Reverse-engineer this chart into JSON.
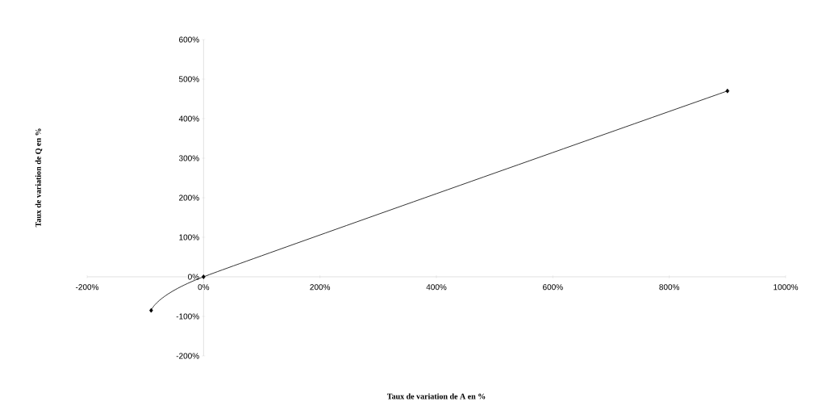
{
  "chart_data": {
    "type": "line",
    "xlabel": "Taux de variation de A en %",
    "ylabel": "Taux de variation de Q en %",
    "x": [
      -90,
      0,
      900
    ],
    "series": [
      {
        "color": "#000000",
        "values": [
          -85,
          0,
          470
        ]
      }
    ],
    "marker": "diamond",
    "line_style": "solid",
    "xlim": [
      -200,
      1000
    ],
    "ylim": [
      -200,
      600
    ],
    "xticks": [
      {
        "value": -200,
        "label": "-200%"
      },
      {
        "value": 0,
        "label": "0%"
      },
      {
        "value": 200,
        "label": "200%"
      },
      {
        "value": 400,
        "label": "400%"
      },
      {
        "value": 600,
        "label": "600%"
      },
      {
        "value": 800,
        "label": "800%"
      },
      {
        "value": 1000,
        "label": "1000%"
      }
    ],
    "yticks": [
      {
        "value": -200,
        "label": "-200%"
      },
      {
        "value": -100,
        "label": "-100%"
      },
      {
        "value": 0,
        "label": "0%"
      },
      {
        "value": 100,
        "label": "100%"
      },
      {
        "value": 200,
        "label": "200%"
      },
      {
        "value": 300,
        "label": "300%"
      },
      {
        "value": 400,
        "label": "400%"
      },
      {
        "value": 500,
        "label": "500%"
      },
      {
        "value": 600,
        "label": "600%"
      }
    ]
  }
}
